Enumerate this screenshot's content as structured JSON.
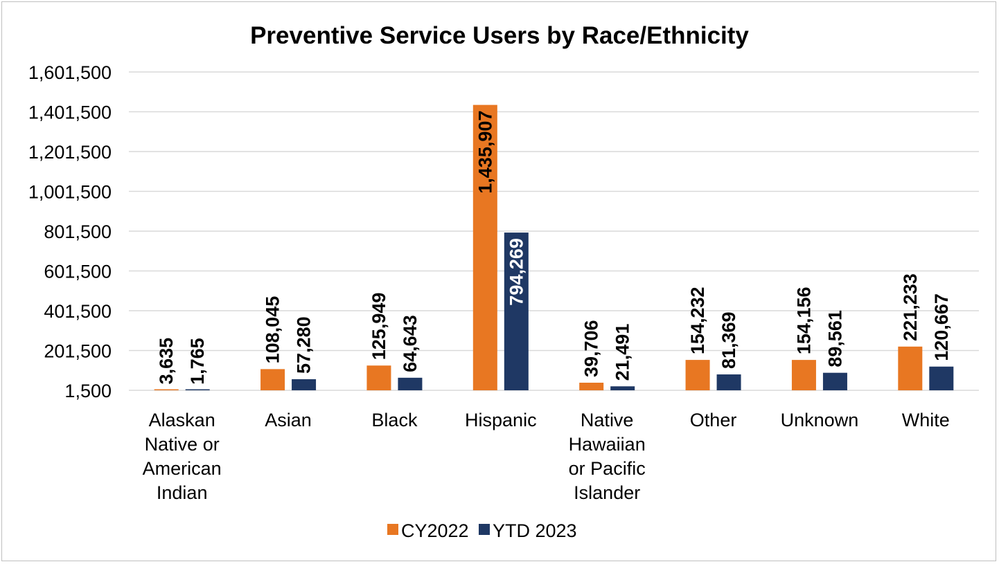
{
  "chart_data": {
    "type": "bar",
    "title": "Preventive Service Users by Race/Ethnicity",
    "xlabel": "",
    "ylabel": "",
    "ylim": [
      1500,
      1601500
    ],
    "yticks": [
      1500,
      201500,
      401500,
      601500,
      801500,
      1001500,
      1201500,
      1401500,
      1601500
    ],
    "ytick_labels": [
      "1,500",
      "201,500",
      "401,500",
      "601,500",
      "801,500",
      "1,001,500",
      "1,201,500",
      "1,401,500",
      "1,601,500"
    ],
    "categories": [
      [
        "Alaskan",
        "Native or",
        "American",
        "Indian"
      ],
      [
        "Asian"
      ],
      [
        "Black"
      ],
      [
        "Hispanic"
      ],
      [
        "Native",
        "Hawaiian",
        "or Pacific",
        "Islander"
      ],
      [
        "Other"
      ],
      [
        "Unknown"
      ],
      [
        "White"
      ]
    ],
    "series": [
      {
        "name": "CY2022",
        "color": "#E87722",
        "values": [
          3635,
          108045,
          125949,
          1435907,
          39706,
          154232,
          154156,
          221233
        ],
        "labels": [
          "3,635",
          "108,045",
          "125,949",
          "1,435,907",
          "39,706",
          "154,232",
          "154,156",
          "221,233"
        ]
      },
      {
        "name": "YTD 2023",
        "color": "#1F3864",
        "values": [
          1765,
          57280,
          64643,
          794269,
          21491,
          81369,
          89561,
          120667
        ],
        "labels": [
          "1,765",
          "57,280",
          "64,643",
          "794,269",
          "21,491",
          "81,369",
          "89,561",
          "120,667"
        ]
      }
    ],
    "grid": true,
    "legend_position": "bottom"
  }
}
